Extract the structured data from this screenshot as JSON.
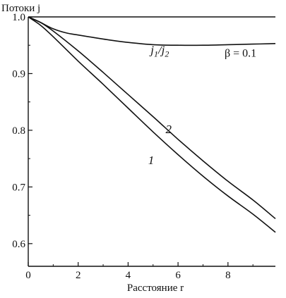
{
  "chart_data": {
    "type": "line",
    "ylabel": "Потоки j",
    "xlabel": "Расстояние r",
    "xlim": [
      0,
      9.9
    ],
    "ylim": [
      0.56,
      1.0
    ],
    "x_ticks": [
      "0",
      "2",
      "4",
      "6",
      "8"
    ],
    "y_ticks": [
      "1.0",
      "0.9",
      "0.8",
      "0.7",
      "0.6"
    ],
    "annotation": "β = 0.1",
    "series": [
      {
        "name": "",
        "values": [
          [
            0,
            1.0
          ],
          [
            9.9,
            1.0
          ]
        ]
      },
      {
        "name": "j1/j2",
        "values": [
          [
            0,
            1.0
          ],
          [
            0.5,
            0.99
          ],
          [
            1.0,
            0.979
          ],
          [
            1.5,
            0.972
          ],
          [
            2,
            0.968
          ],
          [
            3,
            0.961
          ],
          [
            4,
            0.955
          ],
          [
            5,
            0.951
          ],
          [
            6,
            0.95
          ],
          [
            7,
            0.95
          ],
          [
            8,
            0.951
          ],
          [
            9,
            0.952
          ],
          [
            9.9,
            0.953
          ]
        ]
      },
      {
        "name": "2",
        "values": [
          [
            0,
            1.0
          ],
          [
            0.5,
            0.99
          ],
          [
            1,
            0.975
          ],
          [
            2,
            0.94
          ],
          [
            3,
            0.902
          ],
          [
            4,
            0.863
          ],
          [
            5,
            0.824
          ],
          [
            6,
            0.784
          ],
          [
            7,
            0.746
          ],
          [
            8,
            0.71
          ],
          [
            9,
            0.677
          ],
          [
            9.9,
            0.644
          ]
        ]
      },
      {
        "name": "1",
        "values": [
          [
            0,
            1.0
          ],
          [
            0.5,
            0.985
          ],
          [
            1,
            0.965
          ],
          [
            2,
            0.922
          ],
          [
            3,
            0.881
          ],
          [
            4,
            0.839
          ],
          [
            5,
            0.797
          ],
          [
            6,
            0.757
          ],
          [
            7,
            0.719
          ],
          [
            8,
            0.684
          ],
          [
            9,
            0.652
          ],
          [
            9.9,
            0.62
          ]
        ]
      }
    ],
    "curve_labels": [
      {
        "text": "j1/j2",
        "x": 4.9,
        "y": 0.935
      },
      {
        "text": "2",
        "x": 5.5,
        "y": 0.795
      },
      {
        "text": "1",
        "x": 4.8,
        "y": 0.74
      }
    ]
  }
}
